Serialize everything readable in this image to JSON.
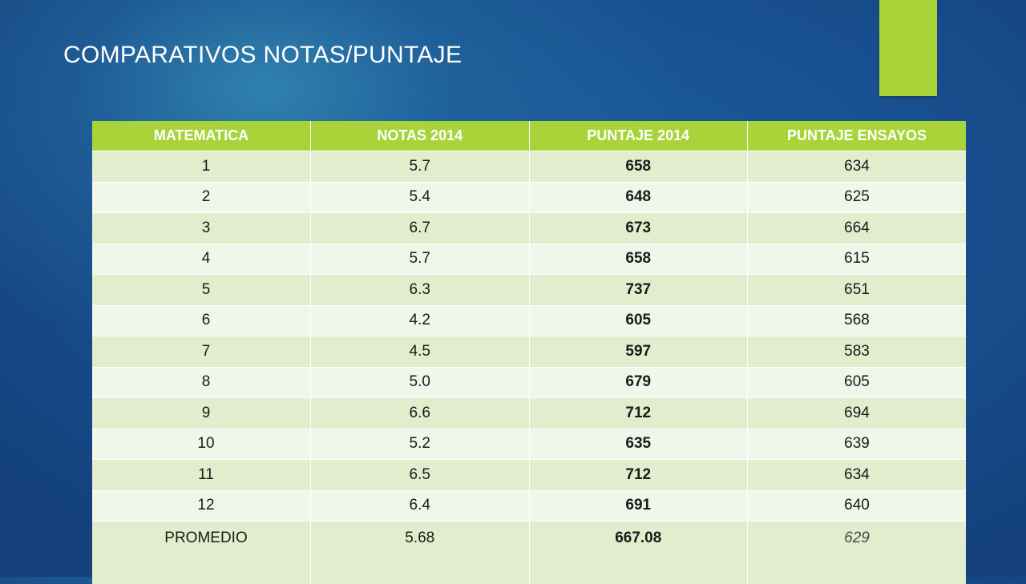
{
  "slide": {
    "title": "COMPARATIVOS NOTAS/PUNTAJE",
    "accent_color": "#a8d43a"
  },
  "table": {
    "headers": [
      "MATEMATICA",
      "NOTAS 2014",
      "PUNTAJE 2014",
      "PUNTAJE ENSAYOS"
    ],
    "rows": [
      [
        "1",
        "5.7",
        "658",
        "634"
      ],
      [
        "2",
        "5.4",
        "648",
        "625"
      ],
      [
        "3",
        "6.7",
        "673",
        "664"
      ],
      [
        "4",
        "5.7",
        "658",
        "615"
      ],
      [
        "5",
        "6.3",
        "737",
        "651"
      ],
      [
        "6",
        "4.2",
        "605",
        "568"
      ],
      [
        "7",
        "4.5",
        "597",
        "583"
      ],
      [
        "8",
        "5.0",
        "679",
        "605"
      ],
      [
        "9",
        "6.6",
        "712",
        "694"
      ],
      [
        "10",
        "5.2",
        "635",
        "639"
      ],
      [
        "11",
        "6.5",
        "712",
        "634"
      ],
      [
        "12",
        "6.4",
        "691",
        "640"
      ]
    ],
    "summary": [
      "PROMEDIO",
      "5.68",
      "667.08",
      "629"
    ]
  }
}
